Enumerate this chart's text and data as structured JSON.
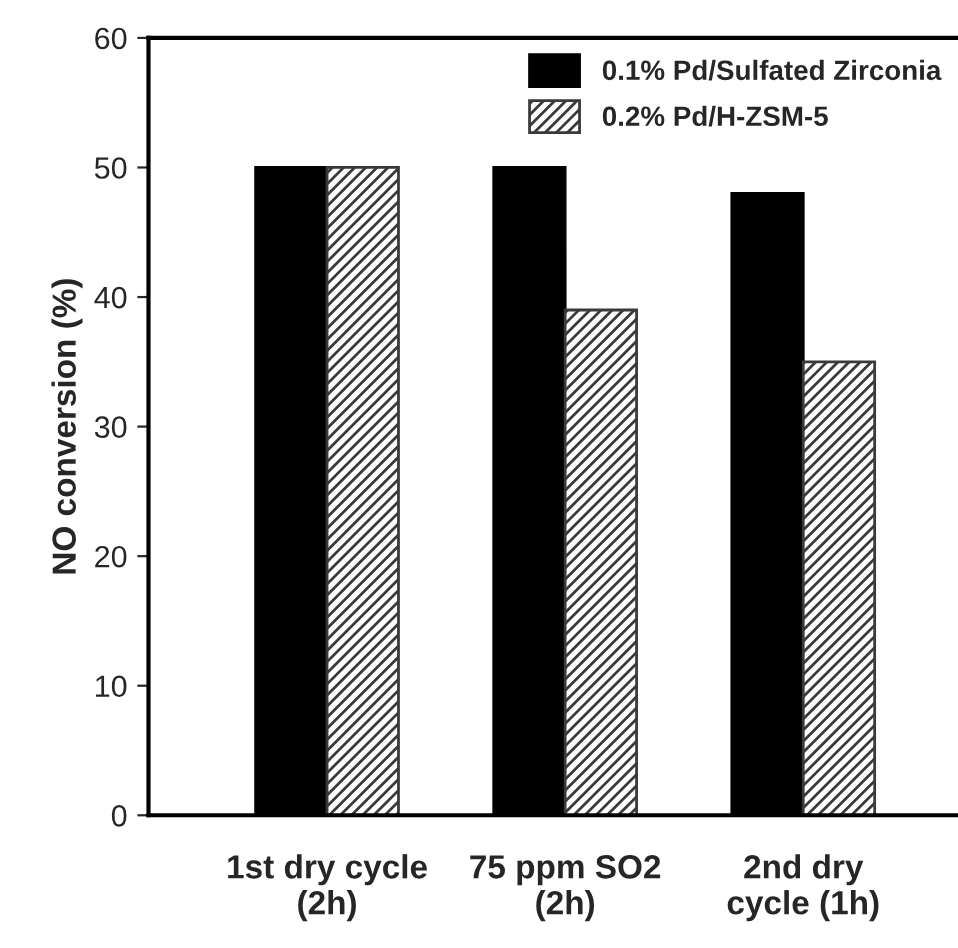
{
  "chart_data": {
    "type": "bar",
    "ylabel": "NO conversion (%)",
    "categories": [
      "1st dry cycle\n(2h)",
      "75 ppm SO2\n(2h)",
      "2nd dry\ncycle (1h)"
    ],
    "series": [
      {
        "name": "0.1% Pd/Sulfated Zirconia",
        "color": "#000000",
        "values": [
          50,
          50,
          48
        ]
      },
      {
        "name": "0.2% Pd/H-ZSM-5",
        "color": "#3a3a3a",
        "values": [
          50,
          39,
          35
        ]
      }
    ],
    "ylim": [
      0,
      60
    ],
    "yticks": [
      0,
      10,
      20,
      30,
      40,
      50,
      60
    ],
    "grid": false,
    "legend": "top right"
  }
}
